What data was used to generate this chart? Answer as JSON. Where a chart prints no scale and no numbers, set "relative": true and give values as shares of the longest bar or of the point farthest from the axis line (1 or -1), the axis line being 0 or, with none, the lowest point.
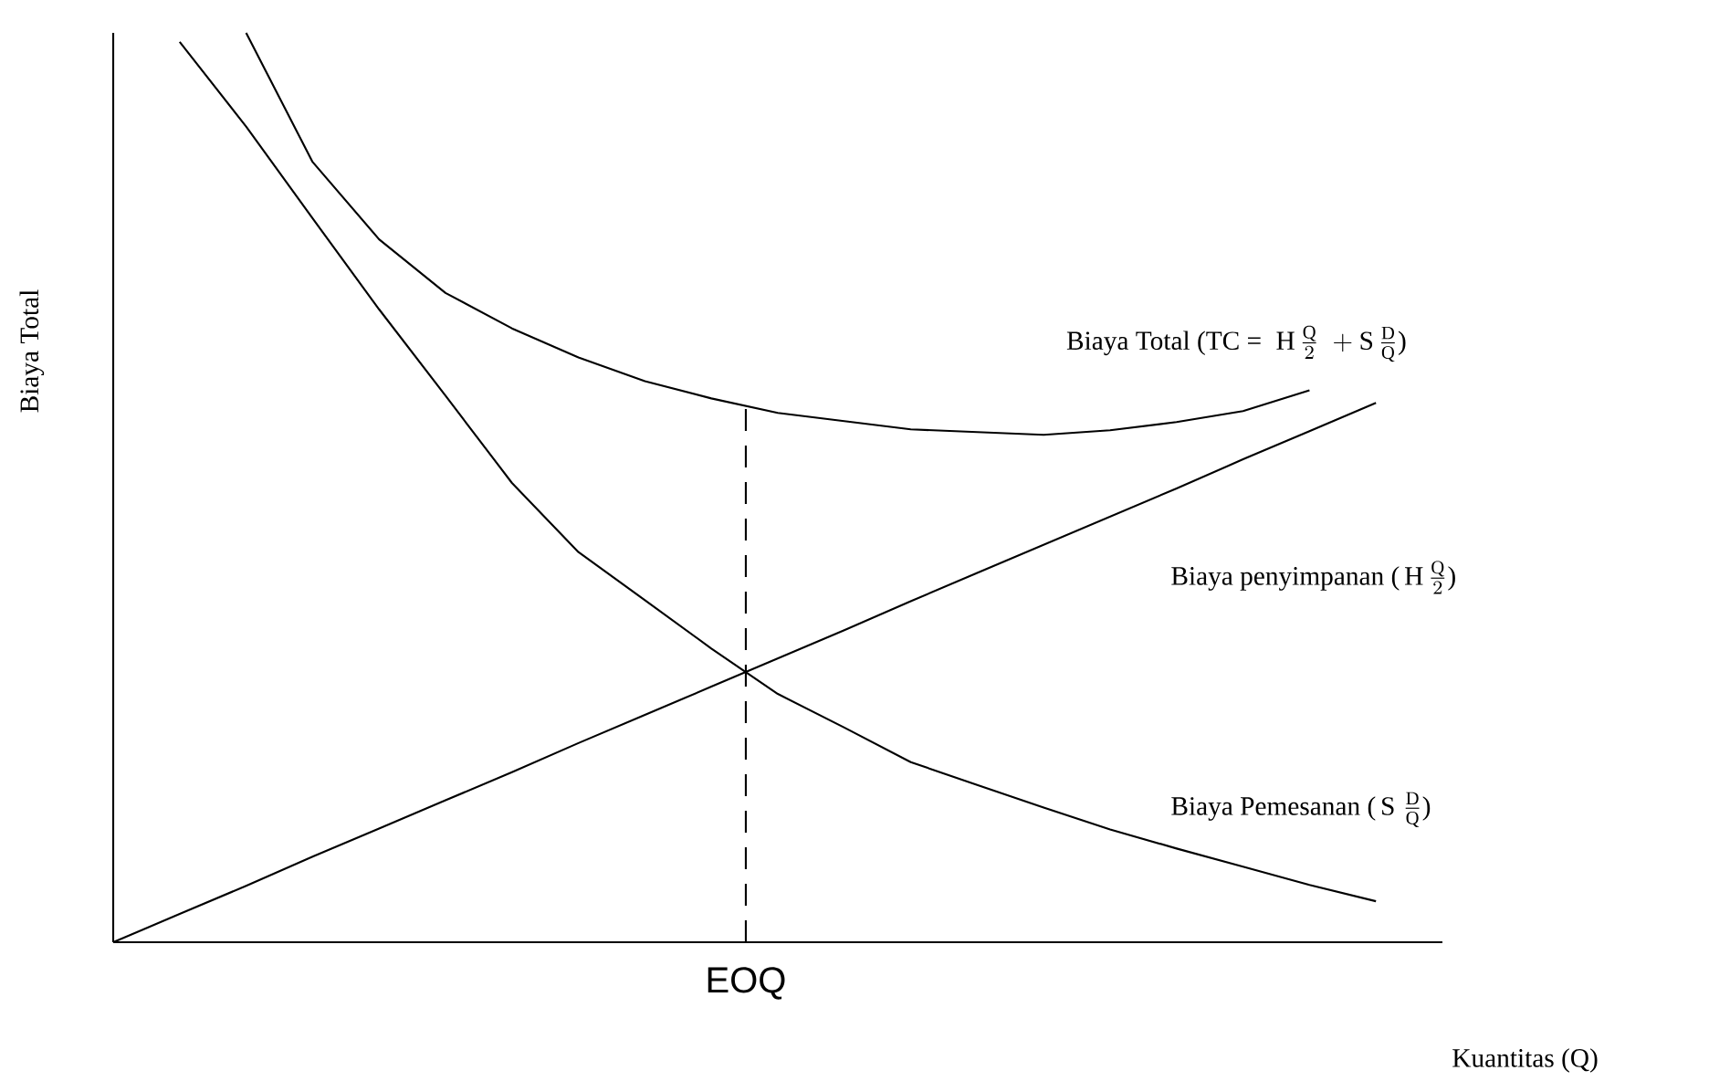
{
  "chart_data": {
    "type": "line",
    "relative": true,
    "xlabel": "Kuantitas (Q)",
    "ylabel": "Biaya Total",
    "legend": false,
    "categories": [
      null,
      null,
      null,
      null,
      null,
      null,
      null,
      null,
      null,
      null,
      null,
      null,
      null,
      null,
      null,
      null,
      null,
      null,
      null,
      null,
      null
    ],
    "series": [
      {
        "name": "\\text{Biaya Total (TC = }\\;\\mathrm{H}\\,\\frac{\\mathrm{Q}}{2}\\;+\\mathrm{S}\\,\\frac{\\mathrm{D}}{\\mathrm{Q}}\\text{)}",
        "color": "#000000",
        "values": [
          null,
          null,
          1.0,
          0.858,
          0.773,
          0.714,
          0.675,
          0.643,
          0.617,
          0.598,
          0.582,
          0.573,
          0.564,
          0.561,
          0.558,
          0.563,
          0.572,
          0.584,
          0.607,
          null,
          null
        ]
      },
      {
        "name": "\\text{Biaya penyimpanan (}\\,\\mathrm{H}\\,\\frac{\\mathrm{Q}}{2}\\text{)}",
        "color": "#000000",
        "values": [
          0,
          0.031,
          0.062,
          0.094,
          0.125,
          0.156,
          0.187,
          0.219,
          0.25,
          0.281,
          0.312,
          0.343,
          0.375,
          0.406,
          0.437,
          0.468,
          0.499,
          0.531,
          0.562,
          0.593,
          null
        ]
      },
      {
        "name": "\\text{Biaya Pemesanan (}\\,\\mathrm{S}\\;\\frac{\\mathrm{D}}{\\mathrm{Q}}\\text{)}",
        "color": "#000000",
        "values": [
          null,
          0.99,
          0.897,
          0.796,
          0.696,
          0.601,
          0.505,
          0.429,
          0.376,
          0.323,
          0.273,
          0.236,
          0.198,
          0.173,
          0.148,
          0.124,
          0.103,
          0.083,
          0.063,
          0.045,
          null
        ]
      }
    ],
    "annotations": [
      "EOQ"
    ]
  }
}
